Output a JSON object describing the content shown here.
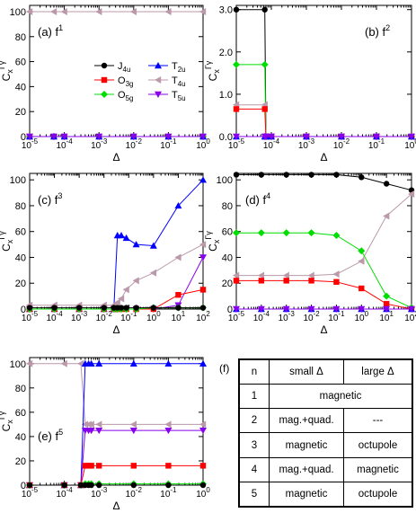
{
  "chart_data": [
    {
      "type": "line",
      "panel": "(a)",
      "title": "f",
      "title_sup": "1",
      "xlabel": "Δ",
      "ylabel": "C",
      "ylabel_sub": "x",
      "ylabel_sup": "Γγ",
      "xscale": "log",
      "xlim": [
        1e-05,
        1
      ],
      "ylim": [
        0,
        105
      ],
      "xticks": [
        "10-5",
        "10-4",
        "10-3",
        "10-2",
        "10-1",
        "100"
      ],
      "yticks": [
        "0",
        "20",
        "40",
        "60",
        "80",
        "100"
      ],
      "legend": "center",
      "series": [
        {
          "name": "J4u",
          "color": "#000000",
          "marker": "circle",
          "x": [
            1e-05,
            5e-05,
            0.0001,
            0.001,
            0.01,
            0.1,
            1
          ],
          "y": [
            0,
            0,
            0,
            0,
            0,
            0,
            0
          ]
        },
        {
          "name": "O3g",
          "color": "#ff0000",
          "marker": "square",
          "x": [
            1e-05,
            5e-05,
            0.0001,
            0.001,
            0.01,
            0.1,
            1
          ],
          "y": [
            0,
            0,
            0,
            0,
            0,
            0,
            0
          ]
        },
        {
          "name": "O5g",
          "color": "#00dd00",
          "marker": "diamond",
          "x": [
            1e-05,
            5e-05,
            0.0001,
            0.001,
            0.01,
            0.1,
            1
          ],
          "y": [
            0,
            0,
            0,
            0,
            0,
            0,
            0
          ]
        },
        {
          "name": "T2u",
          "color": "#0000ff",
          "marker": "triangle-up",
          "x": [
            1e-05,
            5e-05,
            0.0001,
            0.001,
            0.01,
            0.1,
            1
          ],
          "y": [
            0,
            0,
            0,
            0,
            0,
            0,
            0
          ]
        },
        {
          "name": "T4u",
          "color": "#bb99aa",
          "marker": "triangle-left",
          "x": [
            1e-05,
            5e-05,
            0.0001,
            0.001,
            0.01,
            0.1,
            1
          ],
          "y": [
            100,
            100,
            100,
            100,
            100,
            100,
            100
          ]
        },
        {
          "name": "T5u",
          "color": "#8800ee",
          "marker": "triangle-down",
          "x": [
            1e-05,
            5e-05,
            0.0001,
            0.001,
            0.01,
            0.1,
            1
          ],
          "y": [
            0,
            0,
            0,
            0,
            0,
            0,
            0
          ]
        }
      ]
    },
    {
      "type": "line",
      "panel": "(b)",
      "title": "f",
      "title_sup": "2",
      "xlabel": "Δ",
      "ylabel": "C",
      "ylabel_sub": "x",
      "ylabel_sup": "Γγ",
      "xscale": "log",
      "xlim": [
        1e-05,
        1
      ],
      "ylim": [
        0,
        3.1
      ],
      "xticks": [
        "10-5",
        "10-4",
        "10-3",
        "10-2",
        "10-1",
        "100"
      ],
      "yticks": [
        "0.0",
        "1.0",
        "2.0",
        "3.0"
      ],
      "series": [
        {
          "name": "J4u",
          "color": "#000000",
          "marker": "circle",
          "x": [
            1e-05,
            6.5e-05,
            7e-05,
            0.0001,
            0.001,
            0.01,
            0.1,
            1
          ],
          "y": [
            3.0,
            3.0,
            0,
            0,
            0,
            0,
            0,
            0
          ]
        },
        {
          "name": "O5g",
          "color": "#00dd00",
          "marker": "diamond",
          "x": [
            1e-05,
            6.5e-05,
            7e-05,
            0.0001,
            0.001,
            0.01,
            0.1,
            1
          ],
          "y": [
            1.7,
            1.7,
            0,
            0,
            0,
            0,
            0,
            0
          ]
        },
        {
          "name": "T4u",
          "color": "#bb99aa",
          "marker": "triangle-left",
          "x": [
            1e-05,
            6.5e-05,
            7e-05,
            0.0001,
            0.001,
            0.01,
            0.1,
            1
          ],
          "y": [
            0.75,
            0.75,
            0,
            0,
            0,
            0,
            0,
            0
          ]
        },
        {
          "name": "O3g",
          "color": "#ff0000",
          "marker": "square",
          "x": [
            1e-05,
            6.5e-05,
            7e-05,
            0.0001,
            0.001,
            0.01,
            0.1,
            1
          ],
          "y": [
            0.65,
            0.65,
            0,
            0,
            0,
            0,
            0,
            0
          ]
        },
        {
          "name": "T2u",
          "color": "#0000ff",
          "marker": "triangle-up",
          "x": [
            1e-05,
            6.5e-05,
            7e-05,
            0.0001,
            0.001,
            0.01,
            0.1,
            1
          ],
          "y": [
            0,
            0,
            0,
            0,
            0,
            0,
            0,
            0
          ]
        },
        {
          "name": "T5u",
          "color": "#8800ee",
          "marker": "triangle-down",
          "x": [
            1e-05,
            6.5e-05,
            7e-05,
            0.0001,
            0.001,
            0.01,
            0.1,
            1
          ],
          "y": [
            0,
            0,
            0,
            0,
            0,
            0,
            0,
            0
          ]
        }
      ]
    },
    {
      "type": "line",
      "panel": "(c)",
      "title": "f",
      "title_sup": "3",
      "xlabel": "Δ",
      "ylabel": "C",
      "ylabel_sub": "x",
      "ylabel_sup": "Γγ",
      "xscale": "log",
      "xlim": [
        1e-05,
        100
      ],
      "ylim": [
        0,
        105
      ],
      "xticks": [
        "10-5",
        "10-4",
        "10-3",
        "10-2",
        "10-1",
        "100",
        "101",
        "102"
      ],
      "yticks": [
        "0",
        "20",
        "40",
        "60",
        "80",
        "100"
      ],
      "series": [
        {
          "name": "T2u",
          "color": "#0000ff",
          "marker": "triangle-up",
          "x": [
            1e-05,
            0.0001,
            0.001,
            0.01,
            0.025,
            0.035,
            0.05,
            0.08,
            0.2,
            1,
            10,
            100
          ],
          "y": [
            0,
            0,
            0,
            0,
            0,
            57,
            57,
            55,
            50,
            49,
            80,
            100
          ]
        },
        {
          "name": "T4u",
          "color": "#bb99aa",
          "marker": "triangle-left",
          "x": [
            1e-05,
            0.0001,
            0.001,
            0.01,
            0.025,
            0.035,
            0.05,
            0.08,
            0.2,
            1,
            10,
            100
          ],
          "y": [
            3,
            3,
            3,
            3,
            3,
            5,
            8,
            15,
            22,
            28,
            40,
            50
          ]
        },
        {
          "name": "T5u",
          "color": "#8800ee",
          "marker": "triangle-down",
          "x": [
            1e-05,
            0.0001,
            0.001,
            0.01,
            0.025,
            0.035,
            0.05,
            0.08,
            0.2,
            1,
            10,
            100
          ],
          "y": [
            0,
            0,
            0,
            0,
            0,
            0,
            0,
            0,
            0,
            0,
            3,
            40
          ]
        },
        {
          "name": "O3g",
          "color": "#ff0000",
          "marker": "square",
          "x": [
            1e-05,
            0.0001,
            0.001,
            0.01,
            0.025,
            0.035,
            0.05,
            0.08,
            0.2,
            1,
            10,
            100
          ],
          "y": [
            0,
            0,
            0,
            0,
            0,
            0,
            0,
            0,
            0,
            0,
            11,
            15
          ]
        },
        {
          "name": "O5g",
          "color": "#00dd00",
          "marker": "diamond",
          "x": [
            1e-05,
            0.0001,
            0.001,
            0.01,
            0.025,
            0.035,
            0.05,
            0.08,
            0.2,
            1,
            10,
            100
          ],
          "y": [
            0,
            0,
            0,
            0,
            0,
            0,
            0,
            0,
            0,
            1,
            1,
            1
          ]
        },
        {
          "name": "J4u",
          "color": "#000000",
          "marker": "circle",
          "x": [
            1e-05,
            0.0001,
            0.001,
            0.01,
            0.025,
            0.035,
            0.05,
            0.08,
            0.2,
            1,
            10,
            100
          ],
          "y": [
            1,
            1,
            1,
            1,
            1,
            1,
            1,
            1,
            1,
            1,
            1,
            1
          ]
        }
      ]
    },
    {
      "type": "line",
      "panel": "(d)",
      "title": "f",
      "title_sup": "4",
      "xlabel": "Δ",
      "ylabel": "C",
      "ylabel_sub": "x",
      "ylabel_sup": "Γγ",
      "xscale": "log",
      "xlim": [
        1e-05,
        100
      ],
      "ylim": [
        0,
        105
      ],
      "xticks": [
        "10-5",
        "10-4",
        "10-3",
        "10-2",
        "10-1",
        "100",
        "101",
        "102"
      ],
      "yticks": [
        "0",
        "20",
        "40",
        "60",
        "80",
        "100"
      ],
      "series": [
        {
          "name": "J4u",
          "color": "#000000",
          "marker": "circle",
          "x": [
            1e-05,
            0.0001,
            0.001,
            0.01,
            0.1,
            1,
            10,
            100
          ],
          "y": [
            104,
            104,
            104,
            104,
            104,
            102,
            97,
            92
          ]
        },
        {
          "name": "T4u",
          "color": "#bb99aa",
          "marker": "triangle-left",
          "x": [
            1e-05,
            0.0001,
            0.001,
            0.01,
            0.1,
            1,
            10,
            100
          ],
          "y": [
            26,
            26,
            26,
            26,
            27,
            37,
            72,
            89
          ]
        },
        {
          "name": "O5g",
          "color": "#00dd00",
          "marker": "diamond",
          "x": [
            1e-05,
            0.0001,
            0.001,
            0.01,
            0.1,
            1,
            10,
            100
          ],
          "y": [
            59,
            59,
            59,
            59,
            57,
            45,
            10,
            1
          ]
        },
        {
          "name": "O3g",
          "color": "#ff0000",
          "marker": "square",
          "x": [
            1e-05,
            0.0001,
            0.001,
            0.01,
            0.1,
            1,
            10,
            100
          ],
          "y": [
            22,
            22,
            22,
            22,
            21,
            16,
            4,
            0
          ]
        },
        {
          "name": "T2u",
          "color": "#0000ff",
          "marker": "triangle-up",
          "x": [
            1e-05,
            0.0001,
            0.001,
            0.01,
            0.1,
            1,
            10,
            100
          ],
          "y": [
            0,
            0,
            0,
            0,
            0,
            0,
            0,
            0
          ]
        },
        {
          "name": "T5u",
          "color": "#8800ee",
          "marker": "triangle-down",
          "x": [
            1e-05,
            0.0001,
            0.001,
            0.01,
            0.1,
            1,
            10,
            100
          ],
          "y": [
            0,
            0,
            0,
            0,
            0,
            0,
            0,
            0
          ]
        }
      ]
    },
    {
      "type": "line",
      "panel": "(e)",
      "title": "f",
      "title_sup": "5",
      "xlabel": "Δ",
      "ylabel": "C",
      "ylabel_sub": "x",
      "ylabel_sup": "Γγ",
      "xscale": "log",
      "xlim": [
        1e-05,
        1
      ],
      "ylim": [
        0,
        105
      ],
      "xticks": [
        "10-5",
        "10-4",
        "10-3",
        "10-2",
        "10-1",
        "100"
      ],
      "yticks": [
        "0",
        "20",
        "40",
        "60",
        "80",
        "100"
      ],
      "series": [
        {
          "name": "T4u",
          "color": "#bb99aa",
          "marker": "triangle-left",
          "x": [
            1e-05,
            0.0001,
            0.0003,
            0.0004,
            0.0005,
            0.0006,
            0.001,
            0.01,
            0.1,
            1
          ],
          "y": [
            100,
            100,
            100,
            50,
            50,
            50,
            50,
            50,
            50,
            50
          ]
        },
        {
          "name": "T2u",
          "color": "#0000ff",
          "marker": "triangle-up",
          "x": [
            1e-05,
            0.0001,
            0.0003,
            0.0004,
            0.0005,
            0.0006,
            0.001,
            0.01,
            0.1,
            1
          ],
          "y": [
            0,
            0,
            0,
            100,
            100,
            100,
            100,
            100,
            100,
            100
          ]
        },
        {
          "name": "T5u",
          "color": "#8800ee",
          "marker": "triangle-down",
          "x": [
            1e-05,
            0.0001,
            0.0003,
            0.0004,
            0.0005,
            0.0006,
            0.001,
            0.01,
            0.1,
            1
          ],
          "y": [
            0,
            0,
            0,
            45,
            45,
            45,
            45,
            45,
            45,
            45
          ]
        },
        {
          "name": "O3g",
          "color": "#ff0000",
          "marker": "square",
          "x": [
            1e-05,
            0.0001,
            0.0003,
            0.0004,
            0.0005,
            0.0006,
            0.001,
            0.01,
            0.1,
            1
          ],
          "y": [
            0,
            0,
            0,
            16,
            16,
            16,
            16,
            16,
            16,
            16
          ]
        },
        {
          "name": "O5g",
          "color": "#00dd00",
          "marker": "diamond",
          "x": [
            1e-05,
            0.0001,
            0.0003,
            0.0004,
            0.0005,
            0.0006,
            0.001,
            0.01,
            0.1,
            1
          ],
          "y": [
            0,
            0,
            0,
            1,
            1,
            1,
            1,
            1,
            1,
            1
          ]
        },
        {
          "name": "J4u",
          "color": "#000000",
          "marker": "circle",
          "x": [
            1e-05,
            0.0001,
            0.0003,
            0.0004,
            0.0005,
            0.0006,
            0.001,
            0.01,
            0.1,
            1
          ],
          "y": [
            0,
            0,
            0,
            0,
            0,
            0,
            0,
            0,
            0,
            0
          ]
        }
      ]
    },
    {
      "type": "table",
      "panel": "(f)",
      "header": [
        "n",
        "small Δ",
        "large Δ"
      ],
      "rows": [
        {
          "n": "1",
          "span": "magnetic"
        },
        {
          "n": "2",
          "small": "mag.+quad.",
          "large": "---"
        },
        {
          "n": "3",
          "small": "magnetic",
          "large": "octupole"
        },
        {
          "n": "4",
          "small": "mag.+quad.",
          "large": "magnetic"
        },
        {
          "n": "5",
          "small": "magnetic",
          "large": "octupole"
        }
      ]
    }
  ]
}
